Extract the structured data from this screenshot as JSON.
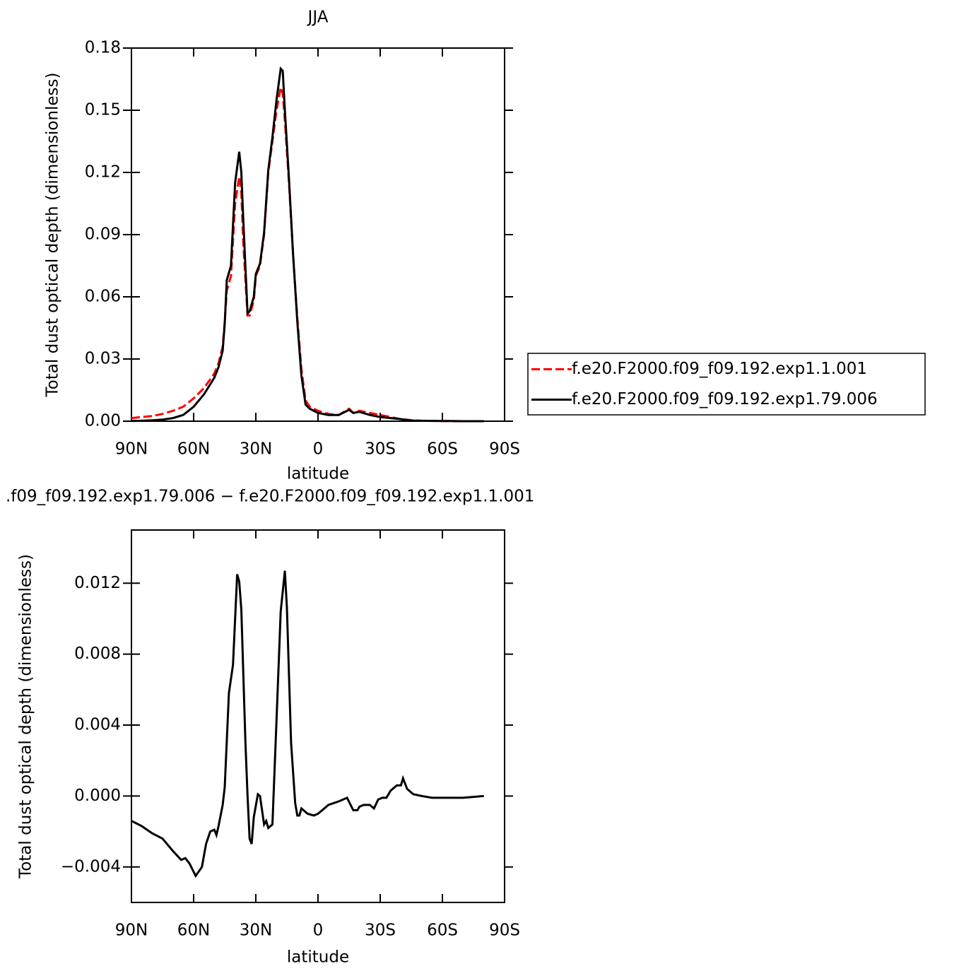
{
  "chart_data": [
    {
      "type": "line",
      "title": "JJA",
      "xlabel": "latitude",
      "ylabel": "Total dust optical depth (dimensionless)",
      "xlim": [
        90,
        -90
      ],
      "xticks": [
        {
          "value": 90,
          "label": "90N"
        },
        {
          "value": 60,
          "label": "60N"
        },
        {
          "value": 30,
          "label": "30N"
        },
        0,
        {
          "value": -30,
          "label": "30S"
        },
        {
          "value": -60,
          "label": "60S"
        },
        {
          "value": -90,
          "label": "90S"
        }
      ],
      "ylim": [
        0,
        0.18
      ],
      "yticks": [
        {
          "value": 0,
          "label": "0.00"
        },
        0.03,
        0.06,
        0.09,
        0.12,
        0.15,
        0.18
      ],
      "legend": "right",
      "x": [
        90,
        85,
        80,
        75,
        70,
        65,
        60,
        55,
        50,
        48,
        46,
        45,
        44,
        42,
        40,
        38,
        37,
        36,
        34,
        33,
        31,
        30,
        28,
        26,
        24,
        22,
        20,
        18,
        17,
        16,
        14,
        12,
        10,
        8,
        6,
        4,
        2,
        0,
        -5,
        -10,
        -15,
        -17,
        -20,
        -25,
        -30,
        -35,
        -40,
        -45,
        -50,
        -60,
        -70,
        -80
      ],
      "series": [
        {
          "name": "f.e20.F2000.f09_f09.192.exp1.1.001",
          "color": "#ff0000",
          "dash": true,
          "values": [
            0.0015,
            0.002,
            0.0025,
            0.0035,
            0.005,
            0.007,
            0.011,
            0.016,
            0.023,
            0.028,
            0.036,
            0.048,
            0.063,
            0.07,
            0.105,
            0.118,
            0.11,
            0.085,
            0.051,
            0.051,
            0.058,
            0.07,
            0.075,
            0.09,
            0.12,
            0.135,
            0.15,
            0.161,
            0.158,
            0.145,
            0.115,
            0.08,
            0.05,
            0.025,
            0.01,
            0.007,
            0.006,
            0.005,
            0.0035,
            0.003,
            0.006,
            0.004,
            0.005,
            0.004,
            0.003,
            0.002,
            0.001,
            0.0005,
            0.0002,
            0.0001,
            0,
            0
          ]
        },
        {
          "name": "f.e20.F2000.f09_f09.192.exp1.79.006",
          "color": "#000000",
          "dash": false,
          "values": [
            0.0001,
            0.0002,
            0.0004,
            0.0008,
            0.0015,
            0.003,
            0.007,
            0.013,
            0.021,
            0.026,
            0.034,
            0.047,
            0.068,
            0.075,
            0.115,
            0.13,
            0.12,
            0.096,
            0.052,
            0.053,
            0.06,
            0.071,
            0.076,
            0.091,
            0.121,
            0.137,
            0.155,
            0.17,
            0.169,
            0.15,
            0.117,
            0.08,
            0.048,
            0.022,
            0.008,
            0.006,
            0.005,
            0.004,
            0.003,
            0.003,
            0.0055,
            0.004,
            0.0045,
            0.003,
            0.002,
            0.0015,
            0.001,
            0.0003,
            0.0002,
            0.0001,
            0,
            0
          ]
        }
      ]
    },
    {
      "type": "line",
      "title": ".f09_f09.192.exp1.79.006 − f.e20.F2000.f09_f09.192.exp1.1.001",
      "xlabel": "latitude",
      "ylabel": "Total dust optical depth (dimensionless)",
      "xlim": [
        90,
        -90
      ],
      "xticks": [
        {
          "value": 90,
          "label": "90N"
        },
        {
          "value": 60,
          "label": "60N"
        },
        {
          "value": 30,
          "label": "30N"
        },
        0,
        {
          "value": -30,
          "label": "30S"
        },
        {
          "value": -60,
          "label": "60S"
        },
        {
          "value": -90,
          "label": "90S"
        }
      ],
      "ylim": [
        -0.006,
        0.015
      ],
      "yticks": [
        {
          "value": -0.004,
          "label": "−0.004"
        },
        {
          "value": 0,
          "label": "0.000"
        },
        0.004,
        0.008,
        0.012
      ],
      "x": [
        90,
        85,
        80,
        75,
        70,
        66,
        64,
        62,
        59,
        56,
        54,
        52,
        50,
        49,
        48,
        46,
        45,
        43,
        41,
        39,
        38,
        37,
        35,
        34,
        33,
        32,
        31,
        29,
        28,
        26,
        25,
        24,
        22,
        20,
        18,
        16,
        15,
        13,
        11,
        10,
        9,
        8,
        5,
        2,
        0,
        -5,
        -10,
        -14,
        -17,
        -19,
        -20,
        -22,
        -25,
        -27,
        -29,
        -31,
        -33,
        -35,
        -38,
        -40,
        -41,
        -43,
        -46,
        -50,
        -55,
        -60,
        -70,
        -80
      ],
      "series": [
        {
          "color": "#000000",
          "values": [
            -0.0014,
            -0.0017,
            -0.0021,
            -0.0024,
            -0.0031,
            -0.0036,
            -0.0035,
            -0.0038,
            -0.0045,
            -0.004,
            -0.0027,
            -0.002,
            -0.0019,
            -0.0022,
            -0.0017,
            -0.0005,
            0.0005,
            0.0058,
            0.0074,
            0.0125,
            0.0121,
            0.0105,
            0.003,
            0,
            -0.0024,
            -0.0027,
            -0.0012,
            0.0001,
            0,
            -0.0016,
            -0.0014,
            -0.0018,
            -0.0016,
            0.0043,
            0.0104,
            0.0127,
            0.0106,
            0.003,
            -0.0004,
            -0.0011,
            -0.0011,
            -0.0007,
            -0.001,
            -0.0011,
            -0.001,
            -0.0005,
            -0.0003,
            -0.0001,
            -0.0008,
            -0.0008,
            -0.0006,
            -0.0005,
            -0.0005,
            -0.0007,
            -0.0002,
            -0.0001,
            -0.0001,
            0.0003,
            0.0006,
            0.0006,
            0.001,
            0.0004,
            0.0001,
            0,
            -0.0001,
            -0.0001,
            -0.0001,
            0
          ]
        }
      ]
    }
  ]
}
